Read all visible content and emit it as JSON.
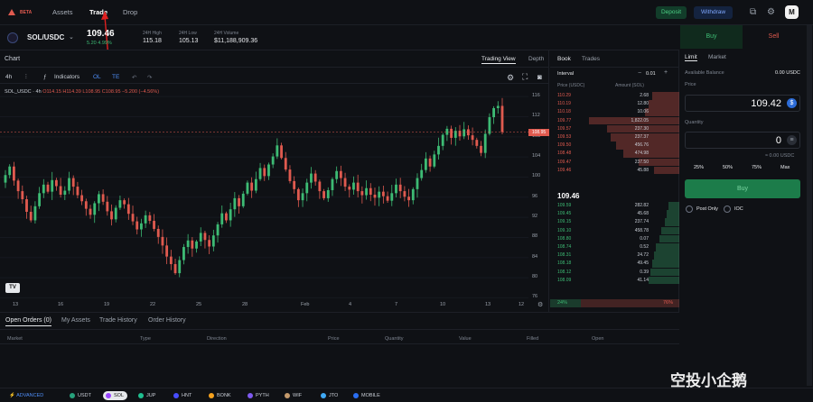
{
  "nav": {
    "beta": "BETA",
    "links": [
      "Assets",
      "Trade",
      "Drop"
    ],
    "deposit": "Deposit",
    "withdraw": "Withdraw",
    "avatar": "M"
  },
  "market": {
    "pair": "SOL/USDC",
    "price": "109.46",
    "change": "5.20  4.99%",
    "high_label": "24H High",
    "high": "115.18",
    "low_label": "24H Low",
    "low": "105.13",
    "vol_label": "24H Volume",
    "vol": "$11,188,909.36"
  },
  "chart": {
    "title": "Chart",
    "tab_tv": "Trading View",
    "tab_depth": "Depth",
    "interval": "4h",
    "indicators": "Indicators",
    "ol": "OL",
    "te": "TE",
    "legend_sym": "SOL_USDC · 4h",
    "legend_vals": "O114.15  H114.39  L108.95  C108.95  −5.200 (−4.56%)",
    "price_tag": "108.95",
    "tv_logo": "TV"
  },
  "chart_data": {
    "type": "candlestick",
    "symbol": "SOL_USDC",
    "interval": "4h",
    "y_ticks": [
      116.0,
      112.0,
      108.0,
      104.0,
      100.0,
      96.0,
      92.0,
      88.0,
      84.0,
      80.0,
      76.0
    ],
    "ylim": [
      75,
      118
    ],
    "x_ticks": [
      "13",
      "16",
      "19",
      "22",
      "25",
      "28",
      "Feb",
      "4",
      "7",
      "10",
      "13",
      "12"
    ],
    "last_close": 108.95,
    "closes": [
      100.4,
      102.1,
      99.3,
      97.2,
      95.6,
      93.1,
      91.4,
      94.2,
      96.8,
      98.5,
      97.1,
      99.4,
      98.2,
      96.5,
      97.3,
      99.8,
      98.1,
      96.4,
      95.2,
      93.7,
      92.5,
      94.8,
      96.6,
      95.1,
      93.2,
      91.6,
      93.9,
      95.4,
      94.6,
      92.7,
      91.2,
      89.6,
      90.8,
      92.4,
      91.3,
      89.7,
      88.1,
      86.4,
      84.2,
      82.7,
      80.9,
      83.5,
      86.1,
      87.4,
      85.8,
      87.2,
      88.9,
      87.5,
      86.2,
      88.4,
      90.6,
      92.8,
      91.4,
      93.6,
      95.8,
      94.2,
      96.7,
      98.9,
      97.3,
      99.6,
      101.8,
      100.2,
      102.5,
      104.1,
      106.3,
      103.8,
      101.5,
      99.2,
      97.6,
      95.4,
      96.8,
      98.9,
      100.7,
      99.1,
      97.2,
      95.8,
      97.4,
      99.6,
      101.2,
      99.8,
      98.1,
      97.5,
      98.9,
      97.2,
      96.4,
      97.8,
      96.5,
      95.9,
      97.1,
      96.2,
      95.3,
      96.8,
      98.5,
      97.2,
      96.1,
      95.4,
      97.6,
      99.8,
      101.4,
      103.7,
      102.1,
      104.5,
      106.2,
      108.4,
      109.6,
      107.8,
      109.2,
      108.1,
      109.5,
      108.3,
      107.4,
      106.2,
      104.8,
      108.6,
      111.9,
      113.7,
      114.15,
      108.95
    ]
  },
  "book": {
    "tab_book": "Book",
    "tab_trades": "Trades",
    "interval_label": "Interval",
    "interval_val": "0.01",
    "col_price": "Price (USDC)",
    "col_amount": "Amount (SOL)",
    "asks": [
      {
        "p": "110.29",
        "a": "2.68",
        "w": 0.3
      },
      {
        "p": "110.19",
        "a": "12.80",
        "w": 0.34
      },
      {
        "p": "110.18",
        "a": "10.06",
        "w": 0.38
      },
      {
        "p": "109.77",
        "a": "1,822.05",
        "w": 1.0
      },
      {
        "p": "109.57",
        "a": "237.30",
        "w": 0.8
      },
      {
        "p": "109.53",
        "a": "237.37",
        "w": 0.76
      },
      {
        "p": "109.50",
        "a": "456.76",
        "w": 0.7
      },
      {
        "p": "108.48",
        "a": "474.98",
        "w": 0.62
      },
      {
        "p": "109.47",
        "a": "237.50",
        "w": 0.45
      },
      {
        "p": "109.46",
        "a": "45.88",
        "w": 0.28
      }
    ],
    "mid": "109.46",
    "bids": [
      {
        "p": "109.59",
        "a": "282.82",
        "w": 0.12
      },
      {
        "p": "109.45",
        "a": "45.68",
        "w": 0.14
      },
      {
        "p": "109.15",
        "a": "237.74",
        "w": 0.16
      },
      {
        "p": "109.10",
        "a": "458.78",
        "w": 0.2
      },
      {
        "p": "108.80",
        "a": "0.07",
        "w": 0.22
      },
      {
        "p": "108.74",
        "a": "0.52",
        "w": 0.26
      },
      {
        "p": "108.31",
        "a": "24.72",
        "w": 0.28
      },
      {
        "p": "108.18",
        "a": "49.45",
        "w": 0.3
      },
      {
        "p": "108.12",
        "a": "0.39",
        "w": 0.32
      },
      {
        "p": "108.09",
        "a": "41.14",
        "w": 0.34
      }
    ],
    "buy_ratio": "24%",
    "sell_ratio": "76%"
  },
  "form": {
    "buy": "Buy",
    "sell": "Sell",
    "limit": "Limit",
    "market": "Market",
    "available_label": "Available Balance",
    "available": "0.00 USDC",
    "price_label": "Price",
    "price_val": "109.42",
    "qty_label": "Quantity",
    "qty_val": "0",
    "approx": "≈ 0.00 USDC",
    "pcts": [
      "25%",
      "50%",
      "75%",
      "Max"
    ],
    "submit": "Buy",
    "post_only": "Post Only",
    "ioc": "IOC"
  },
  "bottom": {
    "tabs": [
      "Open Orders (0)",
      "My Assets",
      "Trade History",
      "Order History"
    ],
    "cols": [
      "Market",
      "Type",
      "Direction",
      "Price",
      "Quantity",
      "Value",
      "Filled",
      "Open"
    ]
  },
  "footer": {
    "advanced": "ADVANCED",
    "tokens": [
      "USDT",
      "SOL",
      "JUP",
      "HNT",
      "BONK",
      "PYTH",
      "WIF",
      "JTO",
      "MOBILE"
    ],
    "watermark": "空投小企鹅"
  },
  "colors": {
    "up": "#3dbb74",
    "down": "#e05a4f",
    "accent": "#4f8ef7"
  }
}
